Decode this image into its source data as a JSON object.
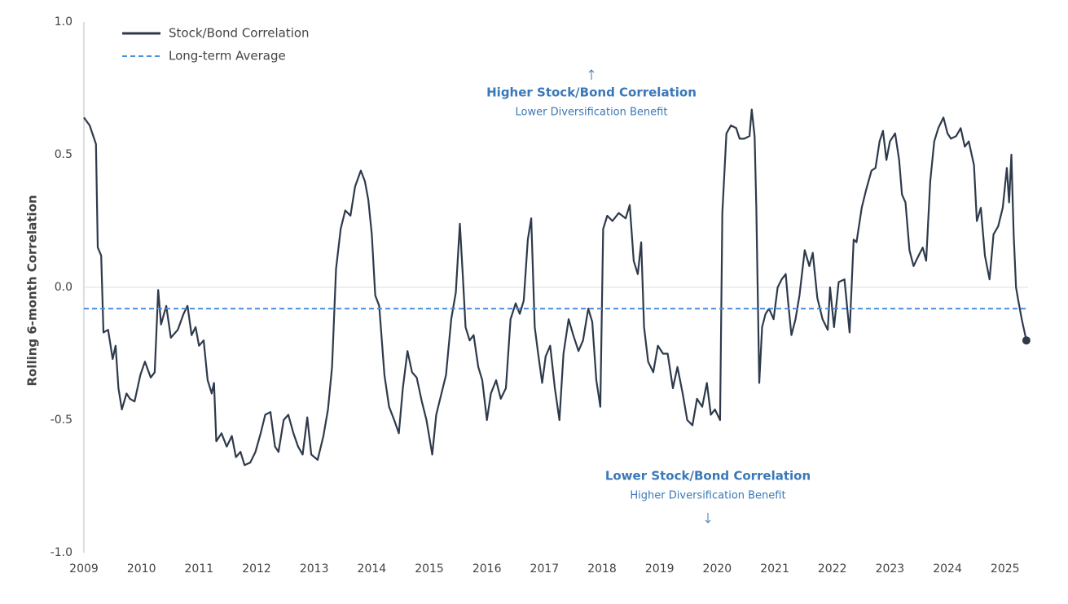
{
  "chart_data": {
    "type": "line",
    "ylabel": "Rolling 6-month Correlation",
    "xlim": [
      2009,
      2025.4
    ],
    "xticks": [
      2009,
      2010,
      2011,
      2012,
      2013,
      2014,
      2015,
      2016,
      2017,
      2018,
      2019,
      2020,
      2021,
      2022,
      2023,
      2024,
      2025
    ],
    "ylim": [
      -1,
      1
    ],
    "yticks": [
      {
        "value": -1,
        "label": "-1.0"
      },
      -0.5,
      {
        "value": 0,
        "label": "0.0"
      },
      0.5,
      {
        "value": 1,
        "label": "1.0"
      }
    ],
    "zero_line": true,
    "legend": "top-left",
    "x": [
      2009.0,
      2009.1,
      2009.21,
      2009.24,
      2009.3,
      2009.34,
      2009.42,
      2009.5,
      2009.55,
      2009.6,
      2009.66,
      2009.74,
      2009.8,
      2009.88,
      2009.98,
      2010.06,
      2010.16,
      2010.23,
      2010.29,
      2010.34,
      2010.43,
      2010.51,
      2010.63,
      2010.73,
      2010.8,
      2010.87,
      2010.94,
      2011.0,
      2011.08,
      2011.15,
      2011.22,
      2011.26,
      2011.3,
      2011.39,
      2011.48,
      2011.57,
      2011.64,
      2011.72,
      2011.79,
      2011.89,
      2011.98,
      2012.07,
      2012.15,
      2012.24,
      2012.32,
      2012.38,
      2012.47,
      2012.55,
      2012.64,
      2012.72,
      2012.8,
      2012.88,
      2012.95,
      2013.06,
      2013.16,
      2013.24,
      2013.31,
      2013.38,
      2013.46,
      2013.54,
      2013.63,
      2013.71,
      2013.81,
      2013.88,
      2013.94,
      2014.0,
      2014.06,
      2014.13,
      2014.22,
      2014.3,
      2014.39,
      2014.47,
      2014.54,
      2014.62,
      2014.7,
      2014.78,
      2014.87,
      2014.95,
      2015.05,
      2015.12,
      2015.21,
      2015.29,
      2015.38,
      2015.46,
      2015.53,
      2015.58,
      2015.63,
      2015.7,
      2015.77,
      2015.85,
      2015.92,
      2016.0,
      2016.07,
      2016.16,
      2016.24,
      2016.33,
      2016.41,
      2016.5,
      2016.57,
      2016.64,
      2016.71,
      2016.77,
      2016.83,
      2016.89,
      2016.96,
      2017.02,
      2017.1,
      2017.18,
      2017.26,
      2017.33,
      2017.42,
      2017.5,
      2017.59,
      2017.67,
      2017.76,
      2017.83,
      2017.9,
      2017.97,
      2018.02,
      2018.09,
      2018.18,
      2018.29,
      2018.41,
      2018.48,
      2018.55,
      2018.62,
      2018.68,
      2018.73,
      2018.8,
      2018.89,
      2018.97,
      2019.06,
      2019.14,
      2019.23,
      2019.31,
      2019.4,
      2019.48,
      2019.57,
      2019.65,
      2019.74,
      2019.82,
      2019.89,
      2019.96,
      2020.05,
      2020.09,
      2020.16,
      2020.24,
      2020.33,
      2020.39,
      2020.47,
      2020.56,
      2020.6,
      2020.65,
      2020.68,
      2020.73,
      2020.78,
      2020.84,
      2020.9,
      2020.98,
      2021.05,
      2021.12,
      2021.19,
      2021.23,
      2021.29,
      2021.36,
      2021.43,
      2021.52,
      2021.6,
      2021.66,
      2021.74,
      2021.83,
      2021.92,
      2021.96,
      2022.03,
      2022.11,
      2022.21,
      2022.3,
      2022.37,
      2022.42,
      2022.51,
      2022.59,
      2022.68,
      2022.75,
      2022.82,
      2022.88,
      2022.94,
      2023.0,
      2023.09,
      2023.16,
      2023.21,
      2023.27,
      2023.34,
      2023.41,
      2023.5,
      2023.57,
      2023.63,
      2023.7,
      2023.77,
      2023.84,
      2023.93,
      2024.0,
      2024.06,
      2024.15,
      2024.23,
      2024.3,
      2024.37,
      2024.46,
      2024.51,
      2024.58,
      2024.65,
      2024.73,
      2024.8,
      2024.88,
      2024.96,
      2025.03,
      2025.07,
      2025.11,
      2025.15,
      2025.19,
      2025.23,
      2025.29,
      2025.37
    ],
    "series": [
      {
        "name": "Stock/Bond Correlation",
        "color": "#2e3a4b",
        "values": [
          0.64,
          0.61,
          0.54,
          0.15,
          0.12,
          -0.17,
          -0.16,
          -0.27,
          -0.22,
          -0.38,
          -0.46,
          -0.4,
          -0.42,
          -0.43,
          -0.33,
          -0.28,
          -0.34,
          -0.32,
          -0.01,
          -0.14,
          -0.07,
          -0.19,
          -0.16,
          -0.1,
          -0.07,
          -0.18,
          -0.15,
          -0.22,
          -0.2,
          -0.35,
          -0.4,
          -0.36,
          -0.58,
          -0.55,
          -0.6,
          -0.56,
          -0.64,
          -0.62,
          -0.67,
          -0.66,
          -0.62,
          -0.55,
          -0.48,
          -0.47,
          -0.6,
          -0.62,
          -0.5,
          -0.48,
          -0.55,
          -0.6,
          -0.63,
          -0.49,
          -0.63,
          -0.65,
          -0.56,
          -0.46,
          -0.3,
          0.07,
          0.22,
          0.29,
          0.27,
          0.38,
          0.44,
          0.4,
          0.33,
          0.2,
          -0.03,
          -0.07,
          -0.33,
          -0.45,
          -0.5,
          -0.55,
          -0.38,
          -0.24,
          -0.32,
          -0.34,
          -0.43,
          -0.5,
          -0.63,
          -0.48,
          -0.4,
          -0.33,
          -0.12,
          -0.02,
          0.24,
          0.05,
          -0.15,
          -0.2,
          -0.18,
          -0.3,
          -0.35,
          -0.5,
          -0.4,
          -0.35,
          -0.42,
          -0.38,
          -0.12,
          -0.06,
          -0.1,
          -0.05,
          0.18,
          0.26,
          -0.15,
          -0.25,
          -0.36,
          -0.26,
          -0.22,
          -0.38,
          -0.5,
          -0.25,
          -0.12,
          -0.18,
          -0.24,
          -0.2,
          -0.08,
          -0.13,
          -0.35,
          -0.45,
          0.22,
          0.27,
          0.25,
          0.28,
          0.26,
          0.31,
          0.1,
          0.05,
          0.17,
          -0.15,
          -0.28,
          -0.32,
          -0.22,
          -0.25,
          -0.25,
          -0.38,
          -0.3,
          -0.4,
          -0.5,
          -0.52,
          -0.42,
          -0.45,
          -0.36,
          -0.48,
          -0.46,
          -0.5,
          0.28,
          0.58,
          0.61,
          0.6,
          0.56,
          0.56,
          0.57,
          0.67,
          0.57,
          0.3,
          -0.36,
          -0.15,
          -0.1,
          -0.08,
          -0.12,
          0.0,
          0.03,
          0.05,
          -0.05,
          -0.18,
          -0.12,
          -0.03,
          0.14,
          0.08,
          0.13,
          -0.04,
          -0.12,
          -0.16,
          0.0,
          -0.15,
          0.02,
          0.03,
          -0.17,
          0.18,
          0.17,
          0.3,
          0.37,
          0.44,
          0.45,
          0.55,
          0.59,
          0.48,
          0.55,
          0.58,
          0.48,
          0.35,
          0.32,
          0.14,
          0.08,
          0.12,
          0.15,
          0.1,
          0.4,
          0.55,
          0.6,
          0.64,
          0.58,
          0.56,
          0.57,
          0.6,
          0.53,
          0.55,
          0.46,
          0.25,
          0.3,
          0.12,
          0.03,
          0.2,
          0.23,
          0.3,
          0.45,
          0.32,
          0.5,
          0.2,
          0.0,
          -0.05,
          -0.12,
          -0.2
        ]
      },
      {
        "name": "Long-term Average",
        "color": "#4a8fdc",
        "value": -0.08,
        "dashed": true
      }
    ],
    "annotations": [
      {
        "title": "Higher Stock/Bond Correlation",
        "text": "Lower Diversification Benefit",
        "color": "#3a78b8"
      },
      {
        "title": "Lower Stock/Bond Correlation",
        "text": "Higher Diversification Benefit",
        "color": "#3a78b8"
      }
    ]
  }
}
